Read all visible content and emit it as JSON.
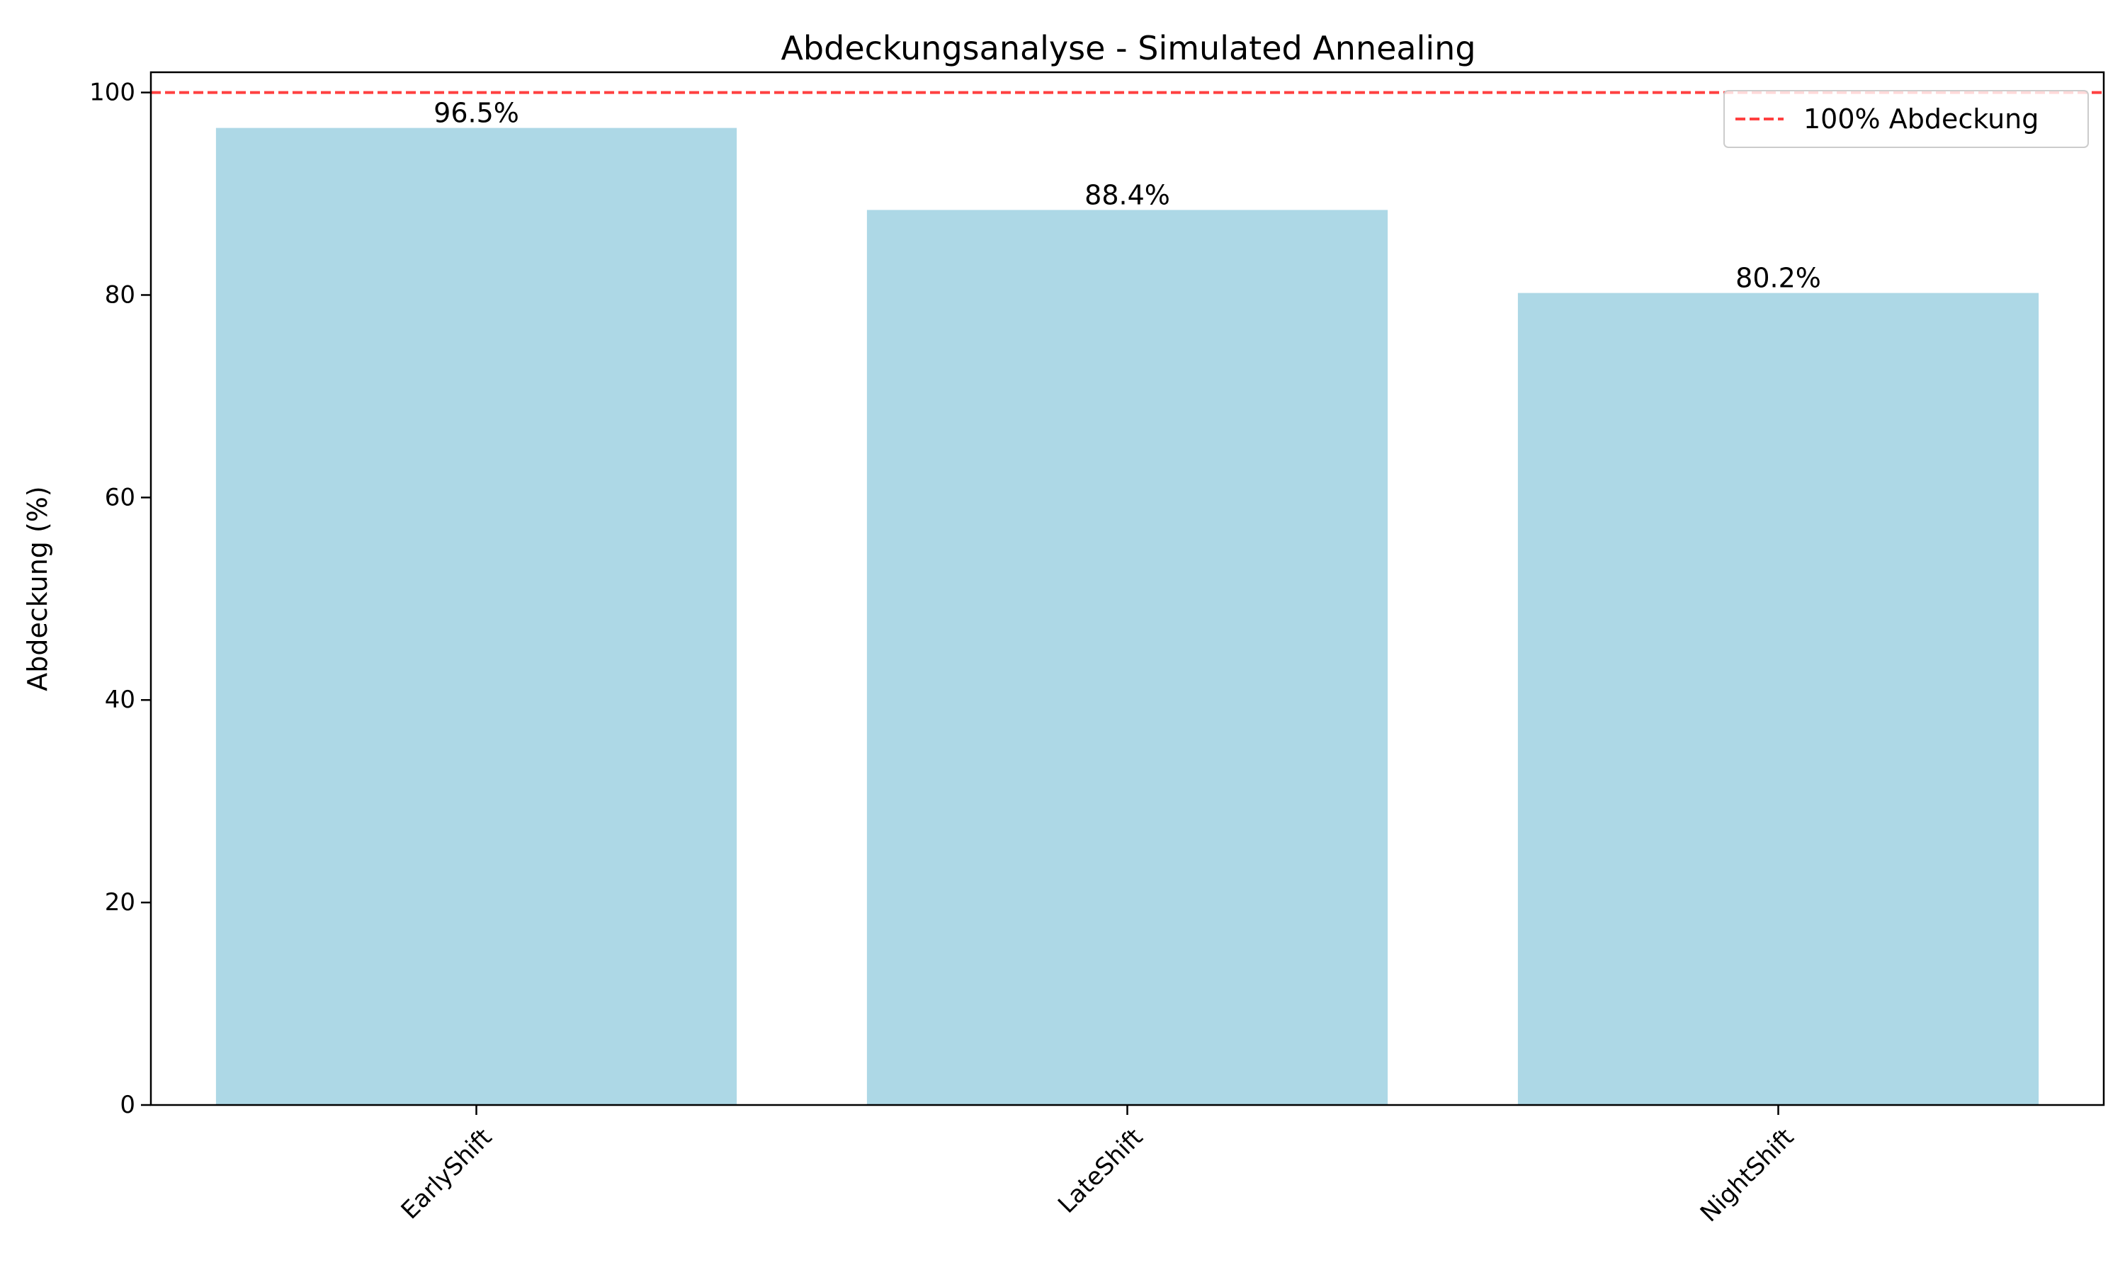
{
  "chart_data": {
    "type": "bar",
    "title": "Abdeckungsanalyse - Simulated Annealing",
    "xlabel": "",
    "ylabel": "Abdeckung (%)",
    "categories": [
      "EarlyShift",
      "LateShift",
      "NightShift"
    ],
    "values": [
      96.5,
      88.4,
      80.2
    ],
    "value_labels": [
      "96.5%",
      "88.4%",
      "80.2%"
    ],
    "ylim": [
      0,
      102
    ],
    "yticks": [
      0,
      20,
      40,
      60,
      80,
      100
    ],
    "bar_color": "#add8e6",
    "reference_line": {
      "value": 100,
      "label": "100% Abdeckung",
      "color": "#ff0000",
      "style": "dashed"
    },
    "legend_placement": "top-right",
    "grid": false
  }
}
